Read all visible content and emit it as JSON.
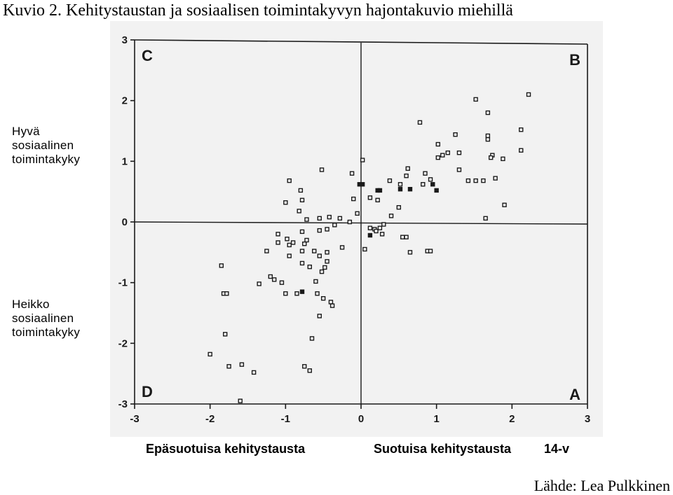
{
  "title": "Kuvio 2. Kehitystaustan ja sosiaalisen toimintakyvyn hajontakuvio miehillä",
  "source": "Lähde: Lea Pulkkinen",
  "colors": {
    "ink": "#1a1a1a",
    "scan_gray": "#f2f2f2",
    "background": "#ffffff"
  },
  "chart_data": {
    "type": "scatter",
    "xlim": [
      -3,
      3
    ],
    "ylim": [
      -3,
      3
    ],
    "grid": false,
    "x_ticks": [
      "-3",
      "-2",
      "-1",
      "0",
      "1",
      "2",
      "3"
    ],
    "y_ticks": [
      "3",
      "2",
      "1",
      "0",
      "-1",
      "-2",
      "-3"
    ],
    "quadrants": {
      "top_left": "C",
      "top_right": "B",
      "bottom_left": "D",
      "bottom_right": "A"
    },
    "left_labels": {
      "top": [
        "Hyvä",
        "sosiaalinen",
        "toimintakyky"
      ],
      "bottom": [
        "Heikko",
        "sosiaalinen",
        "toimintakyky"
      ]
    },
    "bottom_labels": {
      "negative": "Epäsuotuisa kehitystausta",
      "positive": "Suotuisa kehitystausta",
      "age": "14-v"
    },
    "points_open": [
      [
        2.22,
        2.1
      ],
      [
        1.52,
        2.02
      ],
      [
        1.68,
        1.8
      ],
      [
        0.78,
        1.64
      ],
      [
        1.68,
        1.42
      ],
      [
        1.68,
        1.36
      ],
      [
        2.12,
        1.52
      ],
      [
        1.25,
        1.44
      ],
      [
        1.02,
        1.28
      ],
      [
        1.15,
        1.14
      ],
      [
        1.08,
        1.1
      ],
      [
        1.02,
        1.06
      ],
      [
        1.3,
        1.14
      ],
      [
        1.74,
        1.1
      ],
      [
        1.72,
        1.06
      ],
      [
        1.88,
        1.04
      ],
      [
        2.12,
        1.18
      ],
      [
        1.3,
        0.86
      ],
      [
        0.62,
        0.88
      ],
      [
        0.6,
        0.76
      ],
      [
        0.85,
        0.8
      ],
      [
        0.82,
        0.62
      ],
      [
        0.92,
        0.7
      ],
      [
        0.52,
        0.62
      ],
      [
        0.38,
        0.68
      ],
      [
        1.42,
        0.68
      ],
      [
        1.52,
        0.68
      ],
      [
        1.62,
        0.68
      ],
      [
        1.78,
        0.72
      ],
      [
        1.9,
        0.28
      ],
      [
        1.65,
        0.06
      ],
      [
        0.02,
        1.02
      ],
      [
        -0.12,
        0.8
      ],
      [
        -0.52,
        0.86
      ],
      [
        -0.95,
        0.68
      ],
      [
        -0.8,
        0.52
      ],
      [
        -1.0,
        0.32
      ],
      [
        -0.78,
        0.36
      ],
      [
        -0.82,
        0.18
      ],
      [
        -0.72,
        0.04
      ],
      [
        -0.55,
        0.06
      ],
      [
        -0.42,
        0.08
      ],
      [
        -0.28,
        0.06
      ],
      [
        -0.1,
        0.38
      ],
      [
        -0.05,
        0.14
      ],
      [
        0.12,
        0.4
      ],
      [
        0.22,
        0.36
      ],
      [
        0.5,
        0.24
      ],
      [
        0.4,
        0.1
      ],
      [
        0.3,
        -0.04
      ],
      [
        -0.15,
        0.0
      ],
      [
        -0.35,
        -0.05
      ],
      [
        -0.45,
        -0.12
      ],
      [
        -0.55,
        -0.14
      ],
      [
        -0.78,
        -0.16
      ],
      [
        -1.1,
        -0.2
      ],
      [
        -0.98,
        -0.28
      ],
      [
        -0.9,
        -0.34
      ],
      [
        -0.95,
        -0.38
      ],
      [
        -1.1,
        -0.34
      ],
      [
        -0.72,
        -0.3
      ],
      [
        -0.75,
        -0.36
      ],
      [
        -0.78,
        -0.48
      ],
      [
        -0.62,
        -0.48
      ],
      [
        -0.55,
        -0.56
      ],
      [
        -0.45,
        -0.5
      ],
      [
        -0.25,
        -0.42
      ],
      [
        -0.45,
        -0.65
      ],
      [
        -0.48,
        -0.75
      ],
      [
        -0.52,
        -0.82
      ],
      [
        -0.68,
        -0.74
      ],
      [
        -0.78,
        -0.68
      ],
      [
        -0.95,
        -0.56
      ],
      [
        -1.25,
        -0.48
      ],
      [
        -1.2,
        -0.9
      ],
      [
        -1.15,
        -0.95
      ],
      [
        -1.05,
        -1.0
      ],
      [
        -1.35,
        -1.02
      ],
      [
        -1.85,
        -0.72
      ],
      [
        -1.82,
        -1.18
      ],
      [
        -1.78,
        -1.18
      ],
      [
        -1.0,
        -1.18
      ],
      [
        -0.85,
        -1.18
      ],
      [
        -0.58,
        -1.18
      ],
      [
        -0.6,
        -0.98
      ],
      [
        -0.5,
        -1.26
      ],
      [
        -0.4,
        -1.32
      ],
      [
        -0.38,
        -1.38
      ],
      [
        -0.55,
        -1.55
      ],
      [
        -0.65,
        -1.92
      ],
      [
        -1.8,
        -1.85
      ],
      [
        -2.0,
        -2.18
      ],
      [
        -1.75,
        -2.38
      ],
      [
        -1.58,
        -2.35
      ],
      [
        -1.42,
        -2.48
      ],
      [
        -0.75,
        -2.38
      ],
      [
        -0.68,
        -2.45
      ],
      [
        -1.6,
        -2.95
      ],
      [
        0.05,
        -0.45
      ],
      [
        0.18,
        -0.12
      ],
      [
        0.28,
        -0.2
      ],
      [
        0.55,
        -0.25
      ],
      [
        0.6,
        -0.25
      ],
      [
        0.65,
        -0.5
      ],
      [
        0.88,
        -0.48
      ],
      [
        0.92,
        -0.48
      ],
      [
        0.12,
        -0.1
      ],
      [
        0.2,
        -0.15
      ],
      [
        0.25,
        -0.1
      ]
    ],
    "points_filled": [
      [
        -0.02,
        0.62
      ],
      [
        0.02,
        0.62
      ],
      [
        0.22,
        0.52
      ],
      [
        0.25,
        0.52
      ],
      [
        0.52,
        0.54
      ],
      [
        0.65,
        0.54
      ],
      [
        0.95,
        0.62
      ],
      [
        1.0,
        0.52
      ],
      [
        0.12,
        -0.22
      ],
      [
        -0.78,
        -1.15
      ]
    ]
  }
}
